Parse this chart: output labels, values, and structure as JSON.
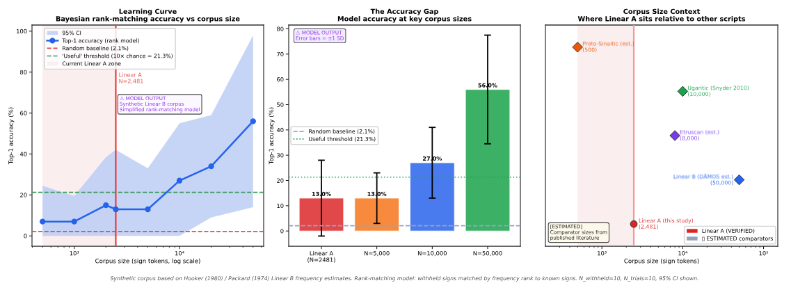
{
  "chart_data": [
    {
      "type": "line",
      "title": "Learning Curve\nBayesian rank-matching accuracy vs corpus size",
      "xlabel": "Corpus size (sign tokens, log scale)",
      "ylabel": "Top-1 accuracy (%)",
      "x": [
        500,
        1000,
        2000,
        2481,
        5000,
        10000,
        20000,
        50000
      ],
      "series": [
        {
          "name": "95% CI",
          "type": "line",
          "color": "#b8cbf4",
          "values": [
            null,
            null,
            null,
            null,
            null,
            null,
            null,
            null
          ],
          "lower": [
            0,
            0,
            0,
            0,
            0,
            0,
            9,
            14
          ],
          "upper": [
            24.5,
            19.5,
            38.5,
            42,
            33,
            55,
            59,
            98
          ]
        },
        {
          "name": "Top-1 accuracy (rank model)",
          "type": "line",
          "color": "#2563eb",
          "marker": "circle",
          "values": [
            7,
            7,
            15,
            13,
            13,
            27,
            34,
            56
          ]
        }
      ],
      "log": "x",
      "xlim": [
        397,
        63000
      ],
      "xticks": [
        {
          "value": 400,
          "label": null
        },
        {
          "value": 500,
          "label": null
        },
        {
          "value": 600,
          "label": null
        },
        {
          "value": 700,
          "label": null
        },
        {
          "value": 800,
          "label": null
        },
        {
          "value": 900,
          "label": null
        },
        {
          "value": 1000,
          "label": "10³"
        },
        {
          "value": 2000,
          "label": null
        },
        {
          "value": 3000,
          "label": null
        },
        {
          "value": 4000,
          "label": null
        },
        {
          "value": 5000,
          "label": null
        },
        {
          "value": 6000,
          "label": null
        },
        {
          "value": 7000,
          "label": null
        },
        {
          "value": 8000,
          "label": null
        },
        {
          "value": 9000,
          "label": null
        },
        {
          "value": 10000,
          "label": "10⁴"
        },
        {
          "value": 20000,
          "label": null
        },
        {
          "value": 30000,
          "label": null
        },
        {
          "value": 40000,
          "label": null
        },
        {
          "value": 50000,
          "label": null
        },
        {
          "value": 60000,
          "label": null
        }
      ],
      "ylim": [
        -5,
        103
      ],
      "yticks": [
        0,
        20,
        40,
        60,
        80,
        100
      ],
      "ref_lines": [
        {
          "axis": "y",
          "value": 2.1,
          "label": "Random baseline (2.1%)",
          "color": "#e04848",
          "line_style": "dashed"
        },
        {
          "axis": "y",
          "value": 21.3,
          "label": "'Useful' threshold (10× chance = 21.3%)",
          "color": "#3a9a5c",
          "line_style": "dashed"
        },
        {
          "axis": "x",
          "value": 2481,
          "label": "Linear A\nN=2,481",
          "color": "#e53e3e",
          "line_style": "solid"
        }
      ],
      "bands": [
        {
          "axis": "x",
          "from": 500,
          "to": 2481,
          "label": "Current Linear A zone",
          "color": "#fbeeee"
        }
      ],
      "legend": "top left",
      "annotations": [
        "⚠ MODEL OUTPUT\nSynthetic Linear B corpus\nSimplified rank-matching model"
      ]
    },
    {
      "type": "bar",
      "title": "The Accuracy Gap\nModel accuracy at key corpus sizes",
      "ylabel": "Top-1 accuracy (%)",
      "categories": [
        "Linear A\n(N=2481)",
        "N=5,000",
        "N=10,000",
        "N=50,000"
      ],
      "values": [
        13,
        13,
        27,
        56
      ],
      "colors": [
        "#e0484a",
        "#f78a3c",
        "#4a7bee",
        "#3cb064"
      ],
      "errors": [
        15,
        10,
        14,
        21.5
      ],
      "value_labels": [
        "13.0%",
        "13.0%",
        "27.0%",
        "56.0%"
      ],
      "ylim": [
        -6,
        81.5
      ],
      "yticks": [
        0,
        10,
        20,
        30,
        40,
        50,
        60,
        70,
        80
      ],
      "ref_lines": [
        {
          "axis": "y",
          "value": 2.1,
          "label": "Random baseline (2.1%)",
          "color": "#94a3c8",
          "line_style": "dashed"
        },
        {
          "axis": "y",
          "value": 21.3,
          "label": "Useful threshold (21.3%)",
          "color": "#22a355",
          "line_style": "dotted"
        }
      ],
      "legend": "left",
      "annotations": [
        "⚠ MODEL OUTPUT\nError bars = ±1 SD",
        "Synthetic corpus based on Hooker (1980) / Packard (1974) Linear B frequency estimates. Rank-matching model: withheld signs matched by frequency rank to known signs. N_withheld=10, N_trials=10, 95% CI shown."
      ]
    },
    {
      "type": "scatter",
      "orientation": "horizontal",
      "title": "Corpus Size Context\nWhere Linear A sits relative to other scripts",
      "xlabel": "Corpus size (sign tokens)",
      "categories": [
        null,
        null,
        null,
        null,
        null
      ],
      "series": [
        {
          "name": "Linear A (VERIFIED)",
          "color": "#dc2626",
          "marker": "circle",
          "values": [
            null,
            null,
            null,
            null,
            2481
          ],
          "value_labels": [
            null,
            null,
            null,
            null,
            "Linear A (this study)\n(2,481)"
          ]
        },
        {
          "marker": "diamond",
          "colors": [
            "#ea580c",
            "#16a34a",
            "#7c3aed",
            "#2563eb",
            null
          ],
          "values": [
            500,
            10000,
            8000,
            50000,
            null
          ],
          "value_labels": [
            "Proto-Sinaitic (est.)\n(500)",
            "Ugaritic (Snyder 2010)\n(10,000)",
            "Etruscan (est.)\n(8,000)",
            "Linear B (DÅMOS est.)\n(50,000)",
            null
          ]
        }
      ],
      "log": "x",
      "xlim": [
        200,
        150000
      ],
      "xticks": [
        {
          "value": 300,
          "label": null
        },
        {
          "value": 400,
          "label": null
        },
        {
          "value": 500,
          "label": null
        },
        {
          "value": 600,
          "label": null
        },
        {
          "value": 700,
          "label": null
        },
        {
          "value": 800,
          "label": null
        },
        {
          "value": 900,
          "label": null
        },
        {
          "value": 1000,
          "label": "10³"
        },
        {
          "value": 2000,
          "label": null
        },
        {
          "value": 3000,
          "label": null
        },
        {
          "value": 4000,
          "label": null
        },
        {
          "value": 5000,
          "label": null
        },
        {
          "value": 6000,
          "label": null
        },
        {
          "value": 7000,
          "label": null
        },
        {
          "value": 8000,
          "label": null
        },
        {
          "value": 9000,
          "label": null
        },
        {
          "value": 10000,
          "label": "10⁴"
        },
        {
          "value": 20000,
          "label": null
        },
        {
          "value": 30000,
          "label": null
        },
        {
          "value": 40000,
          "label": null
        },
        {
          "value": 50000,
          "label": null
        },
        {
          "value": 60000,
          "label": null
        },
        {
          "value": 70000,
          "label": null
        },
        {
          "value": 80000,
          "label": null
        },
        {
          "value": 90000,
          "label": null
        },
        {
          "value": 100000,
          "label": "10⁵"
        }
      ],
      "tick_labels": "x",
      "ref_lines": [
        {
          "axis": "x",
          "value": 2481,
          "color": "#ef9a9a",
          "line_style": "solid"
        }
      ],
      "bands": [
        {
          "axis": "x",
          "from": 500,
          "to": 2481,
          "color": "#fbeeee"
        }
      ],
      "legend": "bottom right",
      "annotations": [
        "[ESTIMATED]\nComparator sizes from\npublished literature",
        "▯ ESTIMATED comparators"
      ]
    }
  ]
}
